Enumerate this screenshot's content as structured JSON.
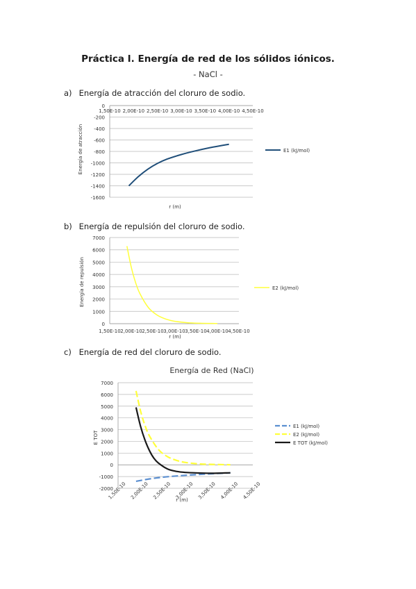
{
  "document": {
    "title": "Práctica I. Energía de red de los sólidos iónicos.",
    "subtitle": "- NaCl -",
    "sections": [
      {
        "label": "a)",
        "text": "Energía de atracción del cloruro de sodio."
      },
      {
        "label": "b)",
        "text": "Energía de repulsión del cloruro de sodio."
      },
      {
        "label": "c)",
        "text": "Energía de red del cloruro de sodio."
      }
    ]
  },
  "chart_data": [
    {
      "type": "line",
      "xlabel": "r (m)",
      "ylabel": "Energía de atracción",
      "xlim": [
        1.5e-10,
        4.5e-10
      ],
      "ylim": [
        -1600,
        0
      ],
      "x_tick_labels": [
        "1,50E-10",
        "2,00E-10",
        "2,50E-10",
        "3,00E-10",
        "3,50E-10",
        "4,00E-10",
        "4,50E-10"
      ],
      "y_tick_labels": [
        "0",
        "-200",
        "-400",
        "-600",
        "-800",
        "-1000",
        "-1200",
        "-1400",
        "-1600"
      ],
      "grid": true,
      "legend_position": "right",
      "series": [
        {
          "name": "E1 (kJ/mol)",
          "color": "#1f4e79",
          "x": [
            1.9e-10,
            2.1e-10,
            2.3e-10,
            2.5e-10,
            2.7e-10,
            3e-10,
            3.3e-10,
            3.6e-10,
            3.9e-10,
            4e-10
          ],
          "values": [
            -1400,
            -1240,
            -1110,
            -1010,
            -935,
            -855,
            -790,
            -735,
            -690,
            -675
          ]
        }
      ]
    },
    {
      "type": "line",
      "xlabel": "r (m)",
      "ylabel": "Energía de repulsión",
      "xlim": [
        1.5e-10,
        4.5e-10
      ],
      "ylim": [
        0,
        7000
      ],
      "x_tick_labels": [
        "1,50E-10",
        "2,00E-10",
        "2,50E-10",
        "3,00E-10",
        "3,50E-10",
        "4,00E-10",
        "4,50E-10"
      ],
      "y_tick_labels": [
        "7000",
        "6000",
        "5000",
        "4000",
        "3000",
        "2000",
        "1000",
        "0"
      ],
      "grid": true,
      "legend_position": "right",
      "series": [
        {
          "name": "E2 (kJ/mol)",
          "color": "#ffff3a",
          "x": [
            1.9e-10,
            2e-10,
            2.1e-10,
            2.2e-10,
            2.4e-10,
            2.6e-10,
            2.8e-10,
            3e-10,
            3.3e-10,
            3.6e-10,
            4e-10
          ],
          "values": [
            6300,
            4600,
            3350,
            2450,
            1300,
            700,
            380,
            200,
            80,
            35,
            10
          ]
        }
      ]
    },
    {
      "type": "line",
      "title": "Energía de Red (NaCl)",
      "xlabel": "r (m)",
      "ylabel": "E TOT",
      "xlim": [
        1.5e-10,
        4.5e-10
      ],
      "ylim": [
        -2000,
        7000
      ],
      "x_tick_labels": [
        "1,50E-10",
        "2,00E-10",
        "2,50E-10",
        "3,00E-10",
        "3,50E-10",
        "4,00E-10",
        "4,50E-10"
      ],
      "y_tick_labels": [
        "7000",
        "6000",
        "5000",
        "4000",
        "3000",
        "2000",
        "1000",
        "0",
        "-1000",
        "-2000"
      ],
      "grid": true,
      "legend_position": "right",
      "series": [
        {
          "name": "E1 (kJ/mol)",
          "color": "#5b8fd0",
          "dash": true,
          "x": [
            1.9e-10,
            2.2e-10,
            2.5e-10,
            2.8e-10,
            3.1e-10,
            3.4e-10,
            3.7e-10,
            4e-10
          ],
          "values": [
            -1400,
            -1200,
            -1050,
            -950,
            -870,
            -800,
            -740,
            -690
          ]
        },
        {
          "name": "E2 (kJ/mol)",
          "color": "#ffff3a",
          "dash": true,
          "x": [
            1.9e-10,
            2e-10,
            2.1e-10,
            2.2e-10,
            2.4e-10,
            2.6e-10,
            2.8e-10,
            3e-10,
            3.3e-10,
            3.6e-10,
            4e-10
          ],
          "values": [
            6300,
            4600,
            3350,
            2450,
            1300,
            700,
            380,
            200,
            80,
            35,
            10
          ]
        },
        {
          "name": "E TOT (kJ/mol)",
          "color": "#1a1a1a",
          "dash": false,
          "x": [
            1.9e-10,
            2e-10,
            2.1e-10,
            2.2e-10,
            2.3e-10,
            2.4e-10,
            2.6e-10,
            2.8e-10,
            3e-10,
            3.3e-10,
            3.6e-10,
            4e-10
          ],
          "values": [
            4900,
            3300,
            2100,
            1200,
            550,
            150,
            -350,
            -560,
            -650,
            -700,
            -720,
            -680
          ]
        }
      ]
    }
  ]
}
